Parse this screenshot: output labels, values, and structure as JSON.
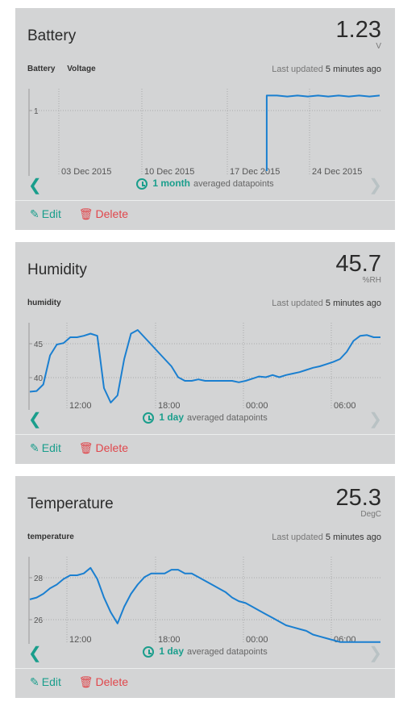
{
  "cards": [
    {
      "title": "Battery",
      "value": "1.23",
      "unit": "V",
      "subtitle_labels": [
        "Battery",
        "Voltage"
      ],
      "updated_prefix": "Last updated",
      "updated_value": "5 minutes ago",
      "period_length": "1 month",
      "period_text": "averaged datapoints",
      "edit_label": "Edit",
      "delete_label": "Delete",
      "line_color": "#1a7fd0",
      "chart_data": {
        "type": "line",
        "x_tick_labels": [
          "03 Dec 2015",
          "10 Dec 2015",
          "17 Dec 2015",
          "24 Dec 2015"
        ],
        "y_tick_labels": [
          "1"
        ],
        "ylim": [
          0.4,
          1.3
        ],
        "grid": true,
        "series": [
          {
            "x": [
              "2015-12-20",
              "2015-12-20",
              "2015-12-21",
              "2015-12-22",
              "2015-12-23",
              "2015-12-24",
              "2015-12-25",
              "2015-12-26",
              "2015-12-27",
              "2015-12-28",
              "2015-12-29",
              "2015-12-30",
              "2015-12-31"
            ],
            "values": [
              0.45,
              1.23,
              1.23,
              1.22,
              1.23,
              1.22,
              1.23,
              1.22,
              1.23,
              1.22,
              1.23,
              1.22,
              1.23
            ]
          }
        ]
      }
    },
    {
      "title": "Humidity",
      "value": "45.7",
      "unit": "%RH",
      "subtitle_labels": [
        "humidity"
      ],
      "updated_prefix": "Last updated",
      "updated_value": "5 minutes ago",
      "period_length": "1 day",
      "period_text": "averaged datapoints",
      "edit_label": "Edit",
      "delete_label": "Delete",
      "line_color": "#1a7fd0",
      "chart_data": {
        "type": "line",
        "x_tick_labels": [
          "12:00",
          "18:00",
          "00:00",
          "06:00"
        ],
        "y_tick_labels": [
          "45",
          "40"
        ],
        "ylim": [
          36,
          48
        ],
        "grid": true,
        "series": [
          {
            "x": [
              0,
              0.5,
              1,
              1.5,
              2,
              2.5,
              3,
              3.5,
              4,
              4.5,
              5,
              5.5,
              6,
              6.5,
              7,
              7.5,
              8,
              8.5,
              9,
              9.5,
              10,
              10.5,
              11,
              11.5,
              12,
              12.5,
              13,
              13.5,
              14,
              14.5,
              15,
              15.5,
              16,
              16.5,
              17,
              17.5,
              18,
              18.5,
              19,
              19.5,
              20,
              20.5,
              21,
              21.5,
              22,
              22.5,
              23,
              23.5,
              24,
              24.5,
              25,
              25.5,
              26
            ],
            "values": [
              38.5,
              38.6,
              39.5,
              43.5,
              45,
              45.2,
              46,
              46,
              46.2,
              46.5,
              46.2,
              39,
              37,
              38,
              43,
              46.5,
              47,
              46,
              45,
              44,
              43,
              42,
              40.5,
              40,
              40,
              40.2,
              40,
              40,
              40,
              40,
              40,
              39.8,
              40,
              40.3,
              40.6,
              40.5,
              40.8,
              40.5,
              40.8,
              41,
              41.2,
              41.5,
              41.8,
              42,
              42.3,
              42.6,
              43,
              44,
              45.5,
              46.2,
              46.3,
              46,
              46
            ]
          }
        ]
      }
    },
    {
      "title": "Temperature",
      "value": "25.3",
      "unit": "DegC",
      "subtitle_labels": [
        "temperature"
      ],
      "updated_prefix": "Last updated",
      "updated_value": "5 minutes ago",
      "period_length": "1 day",
      "period_text": "averaged datapoints",
      "edit_label": "Edit",
      "delete_label": "Delete",
      "line_color": "#1a7fd0",
      "chart_data": {
        "type": "line",
        "x_tick_labels": [
          "12:00",
          "18:00",
          "00:00",
          "06:00"
        ],
        "y_tick_labels": [
          "28",
          "26"
        ],
        "ylim": [
          24.8,
          29.5
        ],
        "grid": true,
        "series": [
          {
            "x": [
              0,
              0.5,
              1,
              1.5,
              2,
              2.5,
              3,
              3.5,
              4,
              4.5,
              5,
              5.5,
              6,
              6.5,
              7,
              7.5,
              8,
              8.5,
              9,
              9.5,
              10,
              10.5,
              11,
              11.5,
              12,
              12.5,
              13,
              13.5,
              14,
              14.5,
              15,
              15.5,
              16,
              16.5,
              17,
              17.5,
              18,
              18.5,
              19,
              19.5,
              20,
              20.5,
              21,
              21.5,
              22,
              22.5,
              23,
              23.5,
              24,
              24.5,
              25,
              25.5,
              26
            ],
            "values": [
              27.2,
              27.3,
              27.5,
              27.8,
              28,
              28.3,
              28.5,
              28.5,
              28.6,
              28.9,
              28.3,
              27.3,
              26.5,
              25.9,
              26.8,
              27.5,
              28,
              28.4,
              28.6,
              28.6,
              28.6,
              28.8,
              28.8,
              28.6,
              28.6,
              28.4,
              28.2,
              28,
              27.8,
              27.6,
              27.3,
              27.1,
              27,
              26.8,
              26.6,
              26.4,
              26.2,
              26,
              25.8,
              25.7,
              25.6,
              25.5,
              25.3,
              25.2,
              25.1,
              25,
              24.9,
              24.9,
              24.9,
              24.9,
              24.9,
              24.9,
              24.9
            ]
          }
        ]
      }
    }
  ]
}
